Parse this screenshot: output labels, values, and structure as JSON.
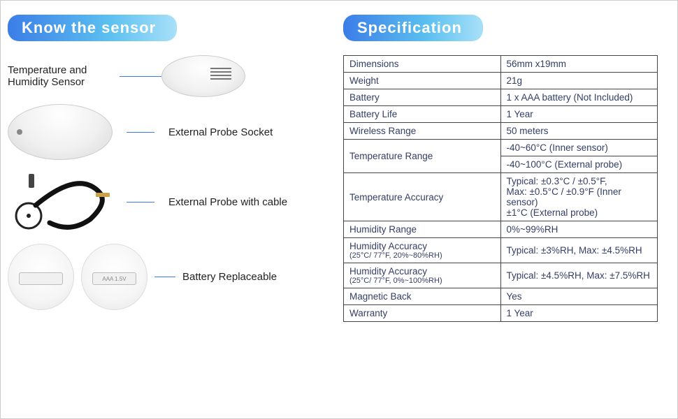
{
  "left": {
    "heading": "Know the sensor",
    "label_sensor": "Temperature and\nHumidity Sensor",
    "label_socket": "External  Probe Socket",
    "label_cable": "External Probe with cable",
    "label_battery": "Battery Replaceable",
    "battery_text": "AAA 1.5V"
  },
  "right": {
    "heading": "Specification"
  },
  "spec": {
    "rows": [
      {
        "label": "Dimensions",
        "value": "56mm x19mm"
      },
      {
        "label": "Weight",
        "value": "21g"
      },
      {
        "label": "Battery",
        "value": "1 x AAA battery (Not Included)"
      },
      {
        "label": "Battery Life",
        "value": "1 Year"
      },
      {
        "label": "Wireless Range",
        "value": "50 meters"
      }
    ],
    "temp_range_label": "Temperature Range",
    "temp_range_1": "-40~60°C (Inner sensor)",
    "temp_range_2": "-40~100°C (External probe)",
    "temp_acc_label": "Temperature  Accuracy",
    "temp_acc_value": "Typical: ±0.3°C / ±0.5°F,\nMax: ±0.5°C / ±0.9°F (Inner sensor)\n±1°C (External probe)",
    "hum_range_label": "Humidity Range",
    "hum_range_value": "0%~99%RH",
    "hum_acc1_label": "Humidity Accuracy",
    "hum_acc1_sub": "(25°C/ 77°F, 20%~80%RH)",
    "hum_acc1_value": "Typical: ±3%RH, Max: ±4.5%RH",
    "hum_acc2_label": "Humidity Accuracy",
    "hum_acc2_sub": "(25°C/ 77°F, 0%~100%RH)",
    "hum_acc2_value": "Typical: ±4.5%RH, Max: ±7.5%RH",
    "magnetic_label": "Magnetic Back",
    "magnetic_value": "Yes",
    "warranty_label": "Warranty",
    "warranty_value": "1 Year"
  },
  "style": {
    "heading_gradient_start": "#3b7de8",
    "heading_gradient_end": "#a8e0f8",
    "table_border": "#444444",
    "text_color": "#333e66",
    "lead_line_color": "#3b7de8"
  }
}
